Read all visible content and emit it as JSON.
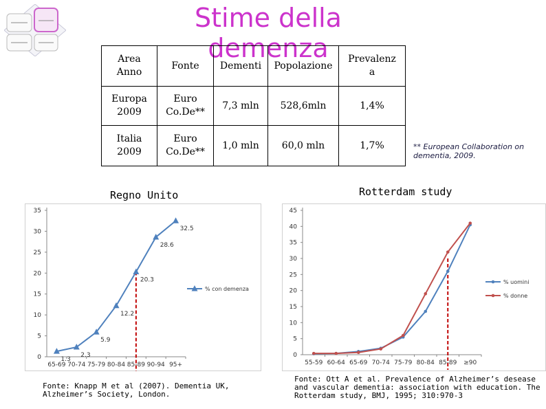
{
  "title": "Stime della demenza",
  "table": {
    "headers": [
      "Area\nAnno",
      "Fonte",
      "Dementi",
      "Popolazione",
      "Prevalenz\na"
    ],
    "rows": [
      [
        "Europa\n2009",
        "Euro\nCo.De**",
        "7,3 mln",
        "528,6mln",
        "1,4%"
      ],
      [
        "Italia\n2009",
        "Euro\nCo.De**",
        "1,0 mln",
        "60,0 mln",
        "1,7%"
      ]
    ]
  },
  "footnote": "** European Collaboration on dementia, 2009.",
  "uk_title": "Regno Unito",
  "rotterdam_title": "Rotterdam study",
  "fonte_uk": "Fonte: Knapp M et al (2007). Dementia UK, Alzheimer’s Society, London.",
  "fonte_rotterdam": "Fonte: Ott A et al. Prevalence of Alzheimer’s desease and vascular dementia: association with education. The Rotterdam study, BMJ, 1995; 310:970-3",
  "colors": {
    "title": "#cc33cc",
    "uk_series": "#4f81bd",
    "rot_series_1": "#4f81bd",
    "rot_series_2": "#c0504d",
    "marker_line": "#c00000"
  },
  "chart_data": [
    {
      "type": "line",
      "title": "Regno Unito",
      "categories": [
        "65-69",
        "70-74",
        "75-79",
        "80-84",
        "85-89",
        "90-94",
        "95+"
      ],
      "series": [
        {
          "name": "% con demenza",
          "values": [
            1.3,
            2.3,
            5.9,
            12.2,
            20.3,
            28.6,
            32.5
          ]
        }
      ],
      "value_labels": [
        "1.3",
        "2.3",
        "5.9",
        "12.2",
        "20.3",
        "28.6",
        "32.5"
      ],
      "yticks": [
        "0",
        "5",
        "10",
        "15",
        "20",
        "25",
        "30",
        "35"
      ],
      "ylim": [
        0,
        35
      ],
      "highlight_category": "85-89",
      "legend": "right"
    },
    {
      "type": "line",
      "title": "Rotterdam study",
      "categories": [
        "55-59",
        "60-64",
        "65-69",
        "70-74",
        "75-79",
        "80-84",
        "85-89",
        "≥90"
      ],
      "series": [
        {
          "name": "% uomini",
          "values": [
            0.3,
            0.4,
            1.0,
            2.0,
            5.5,
            13.5,
            26.0,
            40.5
          ]
        },
        {
          "name": "% donne",
          "values": [
            0.4,
            0.4,
            0.7,
            1.8,
            6.0,
            19.0,
            32.0,
            41.0
          ]
        }
      ],
      "yticks": [
        "0",
        "5",
        "10",
        "15",
        "20",
        "25",
        "30",
        "35",
        "40",
        "45"
      ],
      "ylim": [
        0,
        45
      ],
      "highlight_category": "85-89",
      "legend": "right"
    }
  ]
}
